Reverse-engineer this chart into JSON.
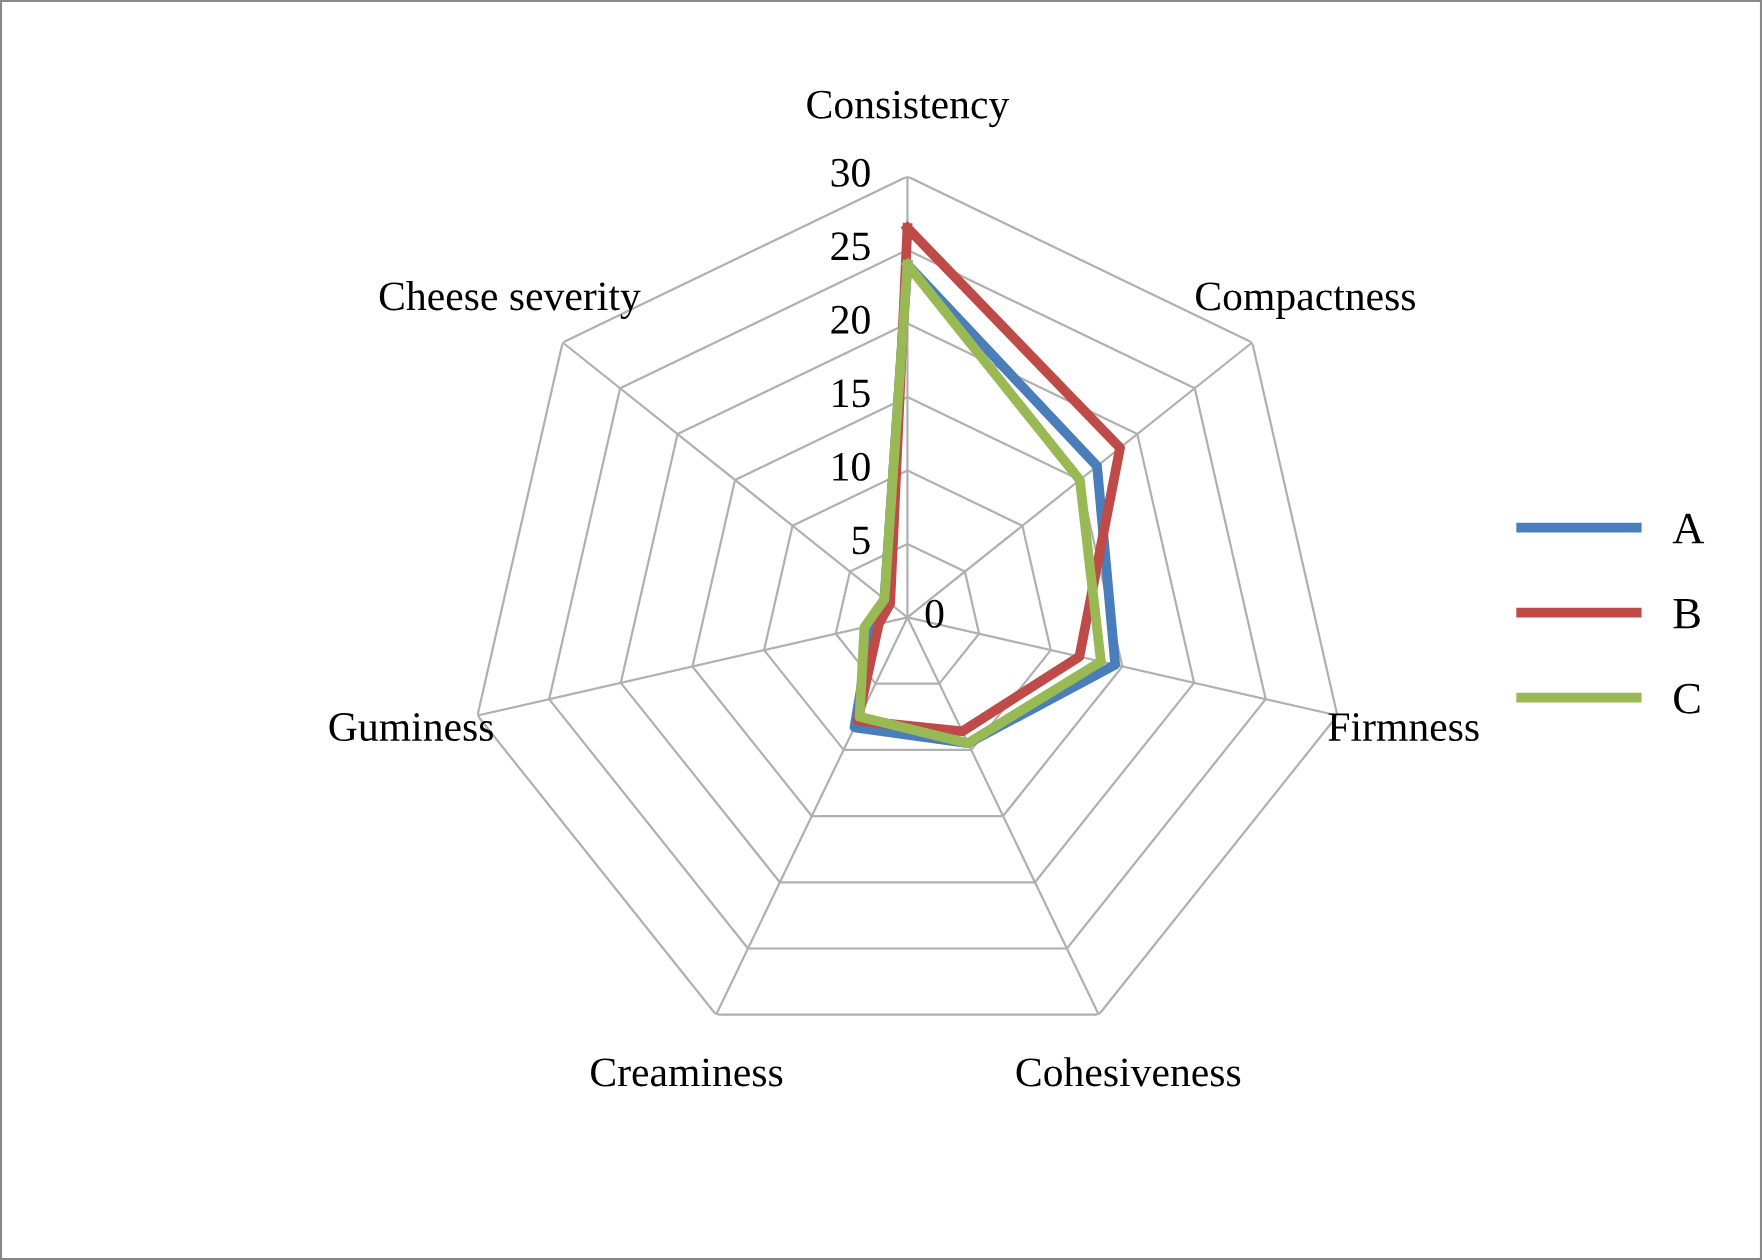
{
  "chart_data": {
    "type": "radar",
    "categories": [
      "Consistency",
      "Compactness",
      "Firmness",
      "Cohesiveness",
      "Creaminess",
      "Guminess",
      "Cheese severity"
    ],
    "series": [
      {
        "name": "A",
        "color": "#4a7ebb",
        "values": [
          24,
          16.5,
          14.5,
          9.5,
          8.3,
          2.5,
          2
        ]
      },
      {
        "name": "B",
        "color": "#be4b48",
        "values": [
          26.5,
          18.5,
          12,
          8.6,
          7.8,
          2,
          1.5
        ]
      },
      {
        "name": "C",
        "color": "#98b954",
        "values": [
          24,
          15,
          13.5,
          9.5,
          7.5,
          3,
          2
        ]
      }
    ],
    "ylim": [
      0,
      30
    ],
    "yticks": [
      0,
      5,
      10,
      15,
      20,
      25,
      30
    ],
    "grid": true,
    "legend": "right",
    "marker": "none",
    "line_style": "solid"
  }
}
